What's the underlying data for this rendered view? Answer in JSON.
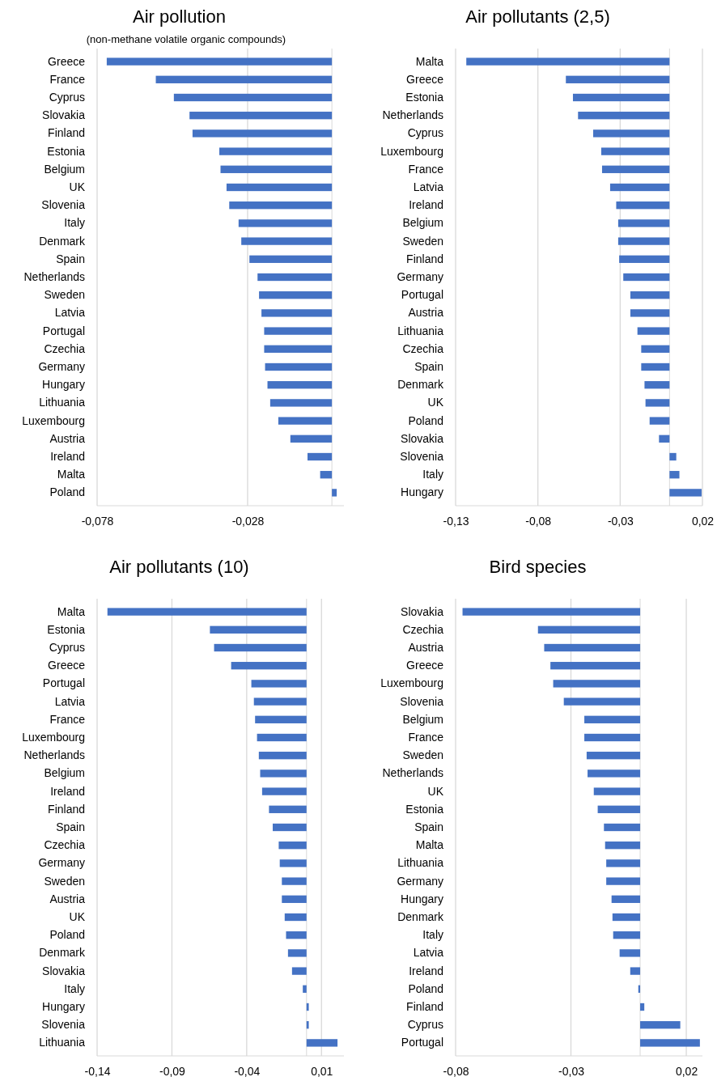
{
  "chart_data": [
    {
      "type": "bar",
      "orientation": "horizontal",
      "title": "Air pollution",
      "subtitle": "(non-methane volatile organic compounds)",
      "color": "#4472c4",
      "grid": "x",
      "xlim": [
        -0.078,
        0.004
      ],
      "xticks": [
        {
          "value": -0.078,
          "label": "-0,078"
        },
        {
          "value": -0.028,
          "label": "-0,028"
        }
      ],
      "categories": [
        "Greece",
        "France",
        "Cyprus",
        "Slovakia",
        "Finland",
        "Estonia",
        "Belgium",
        "UK",
        "Slovenia",
        "Italy",
        "Denmark",
        "Spain",
        "Netherlands",
        "Sweden",
        "Latvia",
        "Portugal",
        "Czechia",
        "Germany",
        "Hungary",
        "Lithuania",
        "Luxembourg",
        "Austria",
        "Ireland",
        "Malta",
        "Poland"
      ],
      "values": [
        -0.0748,
        -0.0585,
        -0.0525,
        -0.0473,
        -0.0463,
        -0.0374,
        -0.037,
        -0.035,
        -0.0341,
        -0.031,
        -0.0301,
        -0.0274,
        -0.0247,
        -0.0242,
        -0.0234,
        -0.0225,
        -0.0225,
        -0.0222,
        -0.0214,
        -0.0205,
        -0.0178,
        -0.0138,
        -0.0081,
        -0.0039,
        0.0016
      ]
    },
    {
      "type": "bar",
      "orientation": "horizontal",
      "title": "Air pollutants (2,5)",
      "color": "#4472c4",
      "grid": "x",
      "xlim": [
        -0.13,
        0.02
      ],
      "xticks": [
        {
          "value": -0.13,
          "label": "-0,13"
        },
        {
          "value": -0.08,
          "label": "-0,08"
        },
        {
          "value": -0.03,
          "label": "-0,03"
        },
        {
          "value": 0.02,
          "label": "0,02"
        }
      ],
      "categories": [
        "Malta",
        "Greece",
        "Estonia",
        "Netherlands",
        "Cyprus",
        "Luxembourg",
        "France",
        "Latvia",
        "Ireland",
        "Belgium",
        "Sweden",
        "Finland",
        "Germany",
        "Portugal",
        "Austria",
        "Lithuania",
        "Czechia",
        "Spain",
        "Denmark",
        "UK",
        "Poland",
        "Slovakia",
        "Slovenia",
        "Italy",
        "Hungary"
      ],
      "values": [
        -0.1235,
        -0.063,
        -0.0587,
        -0.0556,
        -0.0464,
        -0.0415,
        -0.041,
        -0.0361,
        -0.0324,
        -0.0312,
        -0.0312,
        -0.0306,
        -0.0281,
        -0.0238,
        -0.0238,
        -0.0195,
        -0.0172,
        -0.0172,
        -0.0152,
        -0.0146,
        -0.0121,
        -0.0064,
        0.0041,
        0.006,
        0.0195
      ]
    },
    {
      "type": "bar",
      "orientation": "horizontal",
      "title": "Air pollutants (10)",
      "color": "#4472c4",
      "grid": "x",
      "xlim": [
        -0.14,
        0.025
      ],
      "xticks": [
        {
          "value": -0.14,
          "label": "-0,14"
        },
        {
          "value": -0.09,
          "label": "-0,09"
        },
        {
          "value": -0.04,
          "label": "-0,04"
        },
        {
          "value": 0.01,
          "label": "0,01"
        }
      ],
      "categories": [
        "Malta",
        "Estonia",
        "Cyprus",
        "Greece",
        "Portugal",
        "Latvia",
        "France",
        "Luxembourg",
        "Netherlands",
        "Belgium",
        "Ireland",
        "Finland",
        "Spain",
        "Czechia",
        "Germany",
        "Sweden",
        "Austria",
        "UK",
        "Poland",
        "Denmark",
        "Slovakia",
        "Italy",
        "Hungary",
        "Slovenia",
        "Lithuania"
      ],
      "values": [
        -0.1331,
        -0.0646,
        -0.0618,
        -0.0504,
        -0.0369,
        -0.0352,
        -0.0344,
        -0.0331,
        -0.0319,
        -0.031,
        -0.0297,
        -0.0251,
        -0.0226,
        -0.0186,
        -0.0179,
        -0.0165,
        -0.0165,
        -0.0146,
        -0.0137,
        -0.0124,
        -0.0097,
        -0.0025,
        0.0015,
        0.0015,
        0.0207
      ]
    },
    {
      "type": "bar",
      "orientation": "horizontal",
      "title": "Bird species",
      "color": "#4472c4",
      "grid": "x",
      "xlim": [
        -0.08,
        0.027
      ],
      "xticks": [
        {
          "value": -0.08,
          "label": "-0,08"
        },
        {
          "value": -0.03,
          "label": "-0,03"
        },
        {
          "value": 0.02,
          "label": "0,02"
        }
      ],
      "categories": [
        "Slovakia",
        "Czechia",
        "Austria",
        "Greece",
        "Luxembourg",
        "Slovenia",
        "Belgium",
        "France",
        "Sweden",
        "Netherlands",
        "UK",
        "Estonia",
        "Spain",
        "Malta",
        "Lithuania",
        "Germany",
        "Hungary",
        "Denmark",
        "Italy",
        "Latvia",
        "Ireland",
        "Poland",
        "Finland",
        "Cyprus",
        "Portugal"
      ],
      "values": [
        -0.077,
        -0.0443,
        -0.0416,
        -0.0389,
        -0.0377,
        -0.0331,
        -0.0242,
        -0.0242,
        -0.0232,
        -0.0228,
        -0.0201,
        -0.0184,
        -0.0157,
        -0.0152,
        -0.0147,
        -0.0147,
        -0.0124,
        -0.012,
        -0.0117,
        -0.0089,
        -0.0043,
        -0.0008,
        0.0018,
        0.0174,
        0.0259
      ]
    }
  ]
}
